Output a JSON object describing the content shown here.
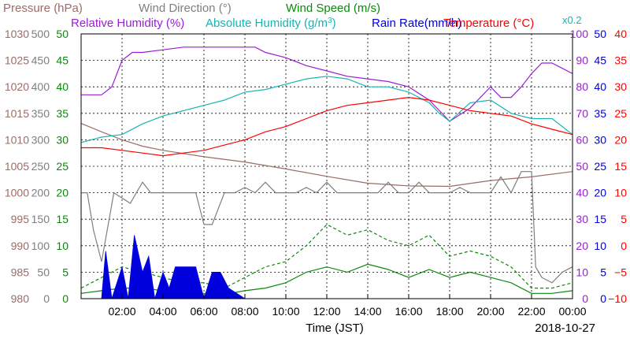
{
  "chart_data": {
    "type": "line",
    "title": "",
    "legend": [
      {
        "text": "Pressure (hPa)",
        "color": "#9c6b66"
      },
      {
        "text": "Wind Direction (°)",
        "color": "#7f7f7f"
      },
      {
        "text": "Wind Speed (m/s)",
        "color": "#0a8a0a"
      },
      {
        "text": "Relative Humidity (%)",
        "color": "#9b1dd6"
      },
      {
        "text": "Absolute Humidity (g/m",
        "sup": "3",
        "close": ")",
        "color": "#19b2b2"
      },
      {
        "text": "Rain Rate(mm/h)",
        "color": "#0000dd"
      },
      {
        "text": "Temperature (°C)",
        "color": "#ff0000"
      }
    ],
    "scale_note": "x0.2",
    "xlabel": "Time (JST)",
    "date_label": "2018-10-27",
    "x_ticks": [
      "02:00",
      "04:00",
      "06:00",
      "08:00",
      "10:00",
      "12:00",
      "14:00",
      "16:00",
      "18:00",
      "20:00",
      "22:00",
      "00:00"
    ],
    "x_range_hours": [
      0,
      24
    ],
    "axes": {
      "pressure": {
        "unit": "hPa",
        "color": "#9c6b66",
        "ticks": [
          "1030",
          "1025",
          "1020",
          "1015",
          "1010",
          "1005",
          "1000",
          "995",
          "990",
          "985",
          "980"
        ],
        "range": [
          980,
          1030
        ]
      },
      "wind_direction": {
        "unit": "°",
        "color": "#7f7f7f",
        "ticks": [
          "500",
          "450",
          "400",
          "350",
          "300",
          "250",
          "200",
          "150",
          "100",
          "50",
          "0"
        ],
        "range": [
          0,
          500
        ]
      },
      "wind_speed": {
        "unit": "m/s",
        "color": "#0a8a0a",
        "ticks": [
          "50",
          "45",
          "40",
          "35",
          "30",
          "25",
          "20",
          "15",
          "10",
          "5",
          "0"
        ],
        "range": [
          0,
          50
        ]
      },
      "relative_humidity": {
        "unit": "%",
        "color": "#9b1dd6",
        "ticks": [
          "100",
          "90",
          "80",
          "70",
          "60",
          "50",
          "40",
          "30",
          "20",
          "10",
          "0"
        ],
        "range": [
          0,
          100
        ]
      },
      "rain_rate": {
        "unit": "mm/h",
        "color": "#0000dd",
        "ticks": [
          "50",
          "45",
          "40",
          "35",
          "30",
          "25",
          "20",
          "15",
          "10",
          "5",
          "0"
        ],
        "range": [
          0,
          50
        ]
      },
      "temperature": {
        "unit": "°C",
        "color": "#ff0000",
        "ticks": [
          "40",
          "35",
          "30",
          "25",
          "20",
          "15",
          "10",
          "5",
          "0",
          "−5",
          "−10"
        ],
        "range": [
          -10,
          40
        ]
      }
    },
    "series": [
      {
        "name": "Pressure",
        "axis": "pressure",
        "color": "#9c6b66",
        "x": [
          0,
          1,
          2,
          3,
          4,
          6,
          8,
          10,
          12,
          14,
          16,
          18,
          20,
          22,
          24
        ],
        "y": [
          1013.1,
          1011.5,
          1010,
          1008.8,
          1008,
          1006.8,
          1005.8,
          1004.5,
          1003.1,
          1001.8,
          1001.3,
          1001.2,
          1002.3,
          1003,
          1004
        ]
      },
      {
        "name": "Wind Direction",
        "axis": "wind_direction",
        "color": "#7f7f7f",
        "x": [
          0,
          0.3,
          0.6,
          1,
          1.6,
          2.4,
          3,
          3.4,
          3.8,
          4.4,
          5,
          5.6,
          6,
          6.4,
          7,
          7.5,
          8,
          8.5,
          9,
          9.5,
          10,
          10.5,
          11,
          11.5,
          12,
          12.5,
          13,
          13.5,
          14,
          14.5,
          15,
          15.5,
          16,
          16.5,
          17,
          17.5,
          18,
          18.5,
          19,
          19.5,
          20,
          20.5,
          21,
          21.5,
          22,
          22.2,
          22.5,
          23,
          23.5,
          24
        ],
        "y": [
          200,
          200,
          130,
          70,
          200,
          180,
          220,
          200,
          200,
          200,
          200,
          200,
          140,
          140,
          200,
          200,
          210,
          200,
          220,
          200,
          200,
          200,
          210,
          200,
          220,
          200,
          200,
          200,
          200,
          200,
          220,
          200,
          200,
          220,
          200,
          200,
          200,
          210,
          200,
          200,
          200,
          230,
          200,
          240,
          240,
          60,
          40,
          30,
          50,
          60
        ]
      },
      {
        "name": "Wind Speed",
        "axis": "wind_speed",
        "color": "#0a8a0a",
        "x": [
          0,
          1,
          2,
          3,
          4,
          5,
          6,
          7,
          8,
          9,
          10,
          11,
          12,
          13,
          14,
          15,
          16,
          17,
          18,
          19,
          20,
          21,
          22,
          23,
          24
        ],
        "y": [
          1,
          1.5,
          2,
          2,
          1.5,
          1.5,
          1,
          0.8,
          1.5,
          2,
          3,
          5,
          6,
          5,
          6.5,
          5.5,
          4,
          5.5,
          4,
          5,
          4,
          3,
          1,
          1,
          1.5
        ]
      },
      {
        "name": "Wind Speed Gust",
        "axis": "wind_speed",
        "color": "#0a8a0a",
        "x": [
          0,
          1,
          2,
          3,
          4,
          5,
          6,
          7,
          8,
          9,
          10,
          11,
          12,
          13,
          14,
          15,
          16,
          17,
          18,
          19,
          20,
          21,
          22,
          23,
          24
        ],
        "y": [
          2,
          4,
          6,
          5,
          4,
          3,
          3,
          2,
          4,
          6,
          7,
          10,
          14,
          12,
          13,
          11,
          10,
          12,
          8,
          9,
          8,
          6,
          2,
          2,
          3
        ]
      },
      {
        "name": "Relative Humidity",
        "axis": "relative_humidity",
        "color": "#9b1dd6",
        "x": [
          0,
          1,
          1.5,
          2,
          2.5,
          3,
          4,
          5,
          6,
          7,
          8,
          8.5,
          9,
          10,
          11,
          12,
          13,
          14,
          15,
          16,
          17,
          18,
          19,
          20,
          20.5,
          21,
          21.5,
          22,
          22.5,
          23,
          23.5,
          24
        ],
        "y": [
          77,
          77,
          80,
          90,
          93,
          93,
          94,
          95,
          95,
          95,
          95,
          95,
          93,
          91,
          88,
          86,
          84,
          83,
          82,
          80,
          75,
          67,
          72,
          80,
          76,
          76,
          80,
          85,
          89,
          89,
          87,
          85
        ]
      },
      {
        "name": "Absolute Humidity",
        "axis": "relative_humidity",
        "color": "#19b2b2",
        "x": [
          0,
          1,
          2,
          3,
          4,
          5,
          6,
          7,
          8,
          9,
          10,
          11,
          12,
          13,
          14,
          15,
          16,
          17,
          17.5,
          18,
          19,
          20,
          21,
          22,
          23,
          24
        ],
        "y": [
          59,
          61,
          62,
          66,
          69,
          71,
          73,
          75,
          78,
          79,
          81,
          83,
          84,
          83,
          80,
          80,
          78,
          74,
          70,
          67,
          74,
          75,
          70,
          68,
          68,
          62
        ]
      },
      {
        "name": "Rain Rate",
        "axis": "rain_rate",
        "color": "#0000dd",
        "x": [
          0,
          1,
          1.2,
          1.5,
          2,
          2.3,
          2.6,
          3,
          3.3,
          3.6,
          4,
          4.3,
          4.6,
          5,
          5.3,
          5.6,
          6,
          6.4,
          6.8,
          7.2,
          8,
          24
        ],
        "y": [
          0,
          0,
          9,
          0,
          6,
          0,
          12,
          5,
          8,
          0,
          5,
          2,
          6,
          6,
          6,
          6,
          0,
          5,
          5,
          2,
          0,
          0
        ]
      },
      {
        "name": "Temperature",
        "axis": "temperature",
        "color": "#ff0000",
        "x": [
          0,
          1,
          2,
          3,
          4,
          5,
          6,
          7,
          8,
          9,
          10,
          11,
          12,
          13,
          14,
          15,
          16,
          17,
          18,
          19,
          20,
          21,
          22,
          23,
          24
        ],
        "y": [
          18.5,
          18.5,
          18,
          17.5,
          17,
          17.5,
          18,
          19,
          20,
          21.5,
          22.5,
          24,
          25.5,
          26.5,
          27,
          27.5,
          28,
          27.5,
          26.5,
          25.5,
          25,
          24.5,
          23,
          22,
          21
        ]
      }
    ]
  }
}
